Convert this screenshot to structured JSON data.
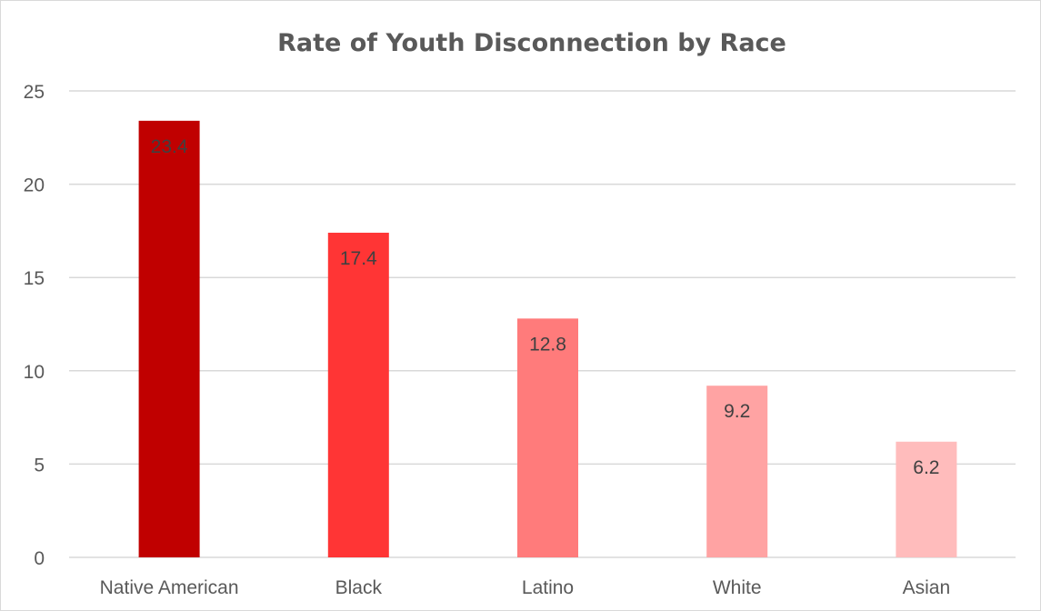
{
  "chart_data": {
    "type": "bar",
    "title": "Rate of Youth Disconnection by Race",
    "xlabel": "",
    "ylabel": "",
    "categories": [
      "Native American",
      "Black",
      "Latino",
      "White",
      "Asian"
    ],
    "values": [
      23.4,
      17.4,
      12.8,
      9.2,
      6.2
    ],
    "data_labels": [
      "23.4",
      "17.4",
      "12.8",
      "9.2",
      "6.2"
    ],
    "ylim": [
      0,
      25
    ],
    "y_ticks": [
      0,
      5,
      10,
      15,
      20,
      25
    ],
    "y_tick_labels": [
      "0",
      "5",
      "10",
      "15",
      "20",
      "25"
    ],
    "grid": true,
    "legend": "none",
    "colors": [
      "#c00000",
      "#ff3535",
      "#ff7b7b",
      "#ffa3a3",
      "#ffbcbc"
    ]
  }
}
